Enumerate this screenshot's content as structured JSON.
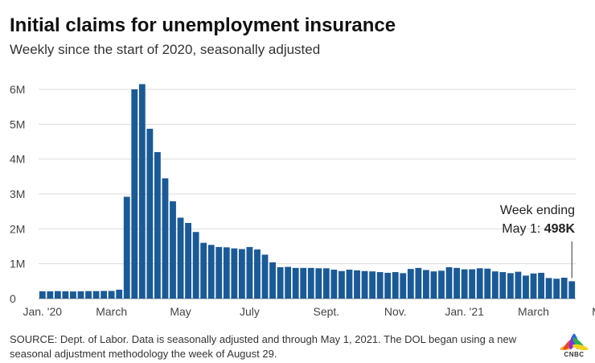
{
  "header": {
    "title": "Initial claims for unemployment insurance",
    "subtitle": "Weekly since the start of 2020, seasonally adjusted"
  },
  "chart_data": {
    "type": "bar",
    "title": "Initial claims for unemployment insurance",
    "subtitle": "Weekly since the start of 2020, seasonally adjusted",
    "xlabel": "",
    "ylabel": "",
    "ylim": [
      0,
      6500000
    ],
    "y_ticks": [
      0,
      1000000,
      2000000,
      3000000,
      4000000,
      5000000,
      6000000
    ],
    "y_tick_labels": [
      "0",
      "1M",
      "2M",
      "3M",
      "4M",
      "5M",
      "6M"
    ],
    "x_tick_labels": [
      {
        "label": "Jan. '20",
        "index": 0
      },
      {
        "label": "March",
        "index": 9
      },
      {
        "label": "May",
        "index": 18
      },
      {
        "label": "July",
        "index": 27
      },
      {
        "label": "Sept.",
        "index": 37
      },
      {
        "label": "Nov.",
        "index": 46
      },
      {
        "label": "Jan. '21",
        "index": 55
      },
      {
        "label": "March",
        "index": 64
      },
      {
        "label": "May",
        "index": 73
      }
    ],
    "bar_color": "#1a5a96",
    "grid": true,
    "values": [
      210000,
      210000,
      215000,
      210000,
      205000,
      210000,
      215000,
      215000,
      220000,
      220000,
      256000,
      2920000,
      6000000,
      6150000,
      4870000,
      4200000,
      3450000,
      2790000,
      2320000,
      2170000,
      1910000,
      1600000,
      1540000,
      1480000,
      1470000,
      1440000,
      1420000,
      1480000,
      1410000,
      1260000,
      1040000,
      900000,
      910000,
      880000,
      880000,
      880000,
      870000,
      870000,
      830000,
      790000,
      830000,
      810000,
      790000,
      780000,
      760000,
      740000,
      760000,
      730000,
      850000,
      880000,
      820000,
      780000,
      800000,
      900000,
      880000,
      840000,
      840000,
      870000,
      860000,
      780000,
      760000,
      730000,
      770000,
      660000,
      720000,
      740000,
      590000,
      570000,
      600000,
      498000
    ],
    "last_value_label": "498K"
  },
  "annotation": {
    "line1": "Week ending",
    "line2_prefix": "May 1: ",
    "line2_value": "498K"
  },
  "source": {
    "text": "SOURCE: Dept. of Labor. Data is seasonally adjusted and through May 1, 2021. The DOL began using a new seasonal adjustment methodology the week of August 29."
  },
  "logo": {
    "text": "CNBC",
    "colors": [
      "#f5a623",
      "#e8452c",
      "#8a2be2",
      "#1e6fd9",
      "#2ab24b",
      "#f2d21e"
    ]
  }
}
